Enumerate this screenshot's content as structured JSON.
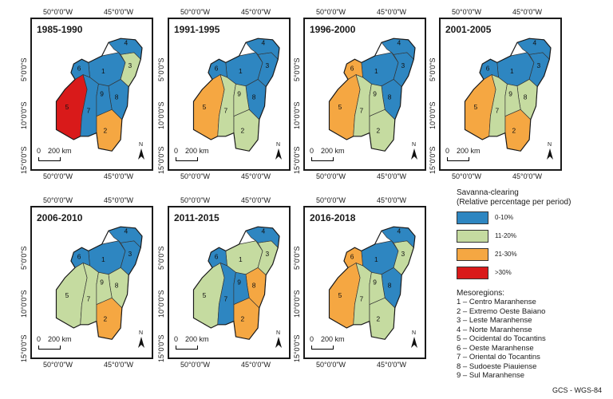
{
  "panels": [
    {
      "period": "1985-1990",
      "colors": [
        "blue",
        "orange",
        "green",
        "blue",
        "red",
        "blue",
        "blue",
        "blue",
        "blue"
      ]
    },
    {
      "period": "1991-1995",
      "colors": [
        "blue",
        "green",
        "blue",
        "blue",
        "orange",
        "blue",
        "green",
        "blue",
        "green"
      ]
    },
    {
      "period": "1996-2000",
      "colors": [
        "blue",
        "green",
        "blue",
        "blue",
        "orange",
        "orange",
        "green",
        "blue",
        "green"
      ]
    },
    {
      "period": "2001-2005",
      "colors": [
        "blue",
        "orange",
        "blue",
        "blue",
        "orange",
        "blue",
        "green",
        "green",
        "green"
      ]
    },
    {
      "period": "2006-2010",
      "colors": [
        "blue",
        "orange",
        "blue",
        "blue",
        "green",
        "blue",
        "green",
        "green",
        "green"
      ]
    },
    {
      "period": "2011-2015",
      "colors": [
        "green",
        "orange",
        "green",
        "blue",
        "green",
        "blue",
        "blue",
        "orange",
        "blue"
      ]
    },
    {
      "period": "2016-2018",
      "colors": [
        "blue",
        "green",
        "green",
        "blue",
        "orange",
        "orange",
        "green",
        "blue",
        "green"
      ]
    }
  ],
  "axis": {
    "lon_left": "50°0'0\"W",
    "lon_right": "45°0'0\"W",
    "lat_top": "5°0'0\"S",
    "lat_mid": "10°0'0\"S",
    "lat_bot": "15°0'0\"S"
  },
  "scale": {
    "zero": "0",
    "label": "200 km"
  },
  "north_label": "N",
  "legend": {
    "title_line1": "Savanna-clearing",
    "title_line2": "(Relative percentage per period)",
    "classes": [
      {
        "label": "0-10%",
        "color": "#2e86c1"
      },
      {
        "label": "11-20%",
        "color": "#c5dba0"
      },
      {
        "label": "21-30%",
        "color": "#f5a742"
      },
      {
        "label": ">30%",
        "color": "#d91a1a"
      }
    ],
    "mesoregions_title": "Mesoregions:",
    "mesoregions": [
      "1 – Centro Maranhense",
      "2 – Extremo Oeste Baiano",
      "3 – Leste Maranhense",
      "4 – Norte Maranhense",
      "5 – Ocidental do Tocantins",
      "6 – Oeste Maranhense",
      "7 – Oriental do Tocantins",
      "8 – Sudoeste Piauiense",
      "9 – Sul Maranhense"
    ]
  },
  "colors": {
    "blue": "#2e86c1",
    "green": "#c5dba0",
    "orange": "#f5a742",
    "red": "#d91a1a"
  },
  "footer": "GCS - WGS-84"
}
